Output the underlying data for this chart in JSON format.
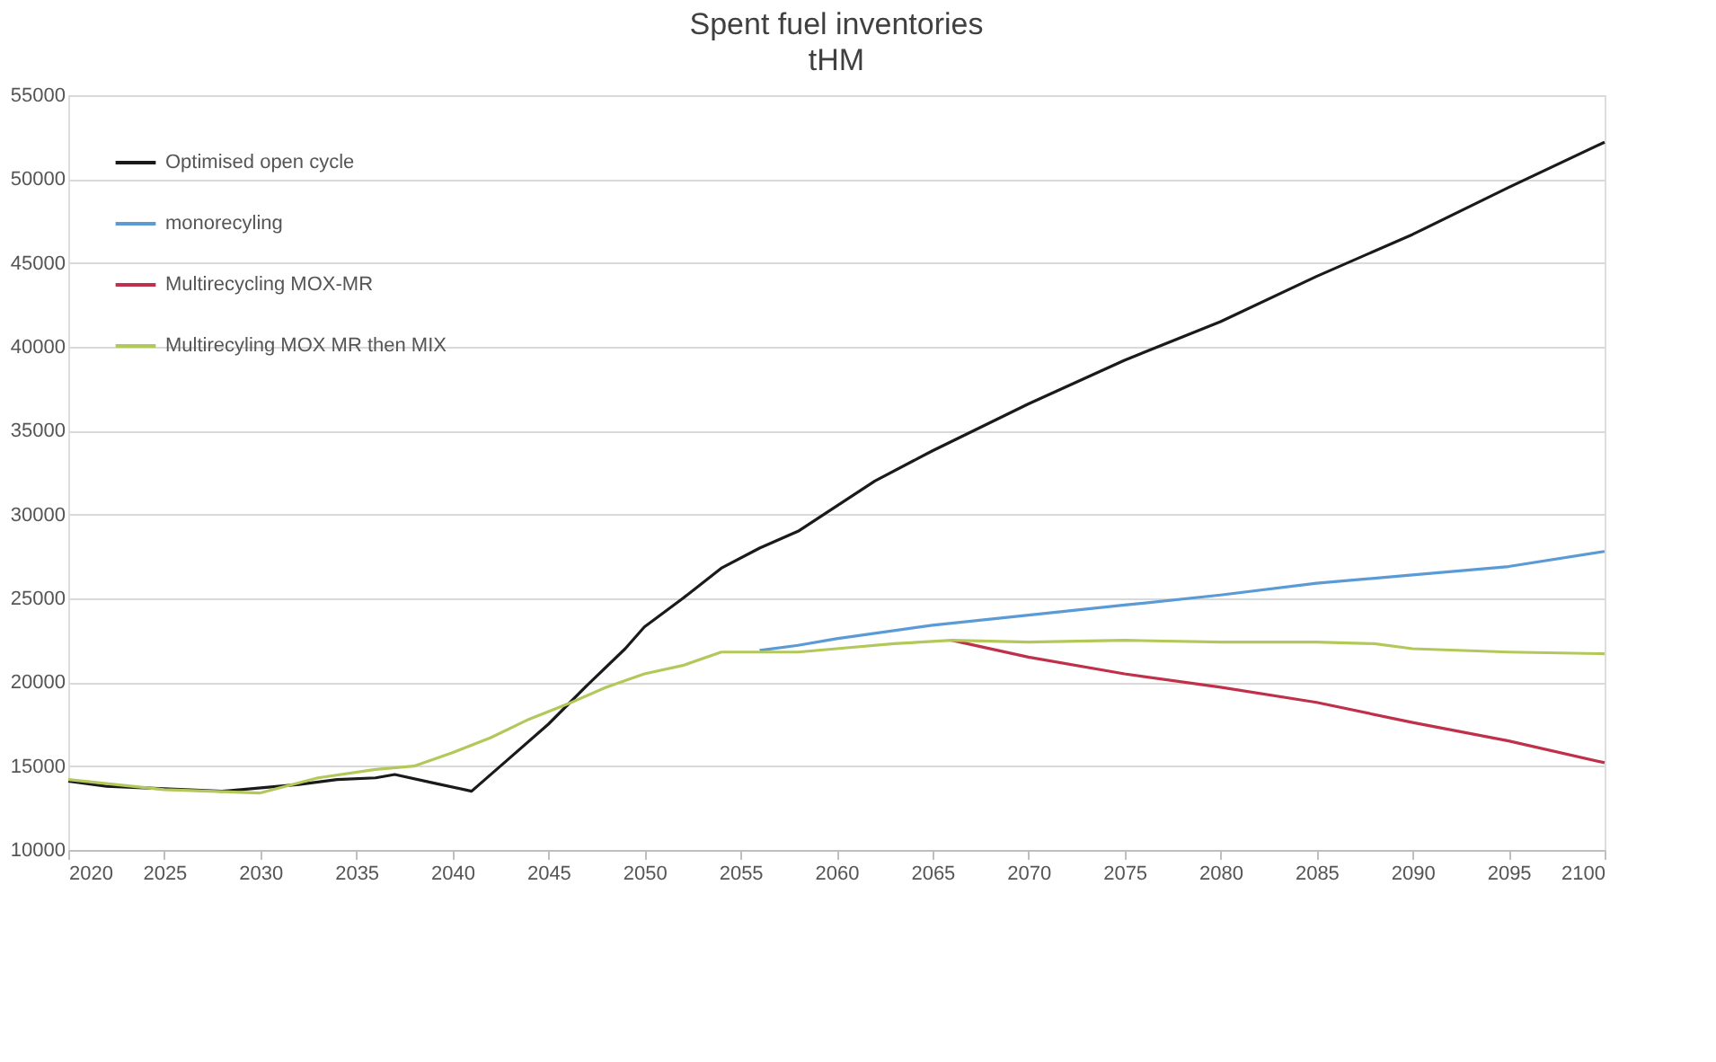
{
  "chart_data": {
    "type": "line",
    "title": "Spent fuel  inventories",
    "subtitle": "tHM",
    "xlim": [
      2020,
      2100
    ],
    "xticks": [
      2020,
      2025,
      2030,
      2035,
      2040,
      2045,
      2050,
      2055,
      2060,
      2065,
      2070,
      2075,
      2080,
      2085,
      2090,
      2095,
      2100
    ],
    "ylim": [
      10000,
      55000
    ],
    "yticks": [
      10000,
      15000,
      20000,
      25000,
      30000,
      35000,
      40000,
      45000,
      50000,
      55000
    ],
    "grid": "y",
    "legend": "top left",
    "marker": "none",
    "line_style": "solid",
    "series": [
      {
        "name": "Optimised open cycle",
        "color": "#1a1a1a",
        "x": [
          2020,
          2022,
          2028,
          2032,
          2034,
          2036,
          2037,
          2039,
          2041,
          2043,
          2045,
          2047,
          2049,
          2050,
          2052,
          2054,
          2056,
          2058,
          2060,
          2062,
          2065,
          2070,
          2075,
          2080,
          2085,
          2090,
          2095,
          2100
        ],
        "values": [
          14100,
          13800,
          13500,
          13900,
          14200,
          14300,
          14500,
          14000,
          13500,
          15500,
          17500,
          19800,
          22000,
          23300,
          25000,
          26800,
          28000,
          29000,
          30500,
          32000,
          33800,
          36600,
          39200,
          41500,
          44200,
          46700,
          49500,
          52200
        ]
      },
      {
        "name": "monorecyling",
        "color": "#5b9bd5",
        "x": [
          2056,
          2058,
          2060,
          2065,
          2070,
          2075,
          2080,
          2085,
          2090,
          2095,
          2100
        ],
        "values": [
          21900,
          22200,
          22600,
          23400,
          24000,
          24600,
          25200,
          25900,
          26400,
          26900,
          27800
        ]
      },
      {
        "name": "Multirecycling MOX-MR",
        "color": "#c0304a",
        "x": [
          2066,
          2070,
          2075,
          2080,
          2085,
          2090,
          2095,
          2100
        ],
        "values": [
          22500,
          21500,
          20500,
          19700,
          18800,
          17600,
          16500,
          15200
        ]
      },
      {
        "name": "Multirecyling MOX MR then MIX",
        "color": "#b3c85a",
        "x": [
          2020,
          2025,
          2030,
          2033,
          2036,
          2038,
          2040,
          2042,
          2044,
          2046,
          2048,
          2050,
          2052,
          2054,
          2056,
          2058,
          2060,
          2063,
          2066,
          2070,
          2075,
          2080,
          2085,
          2088,
          2090,
          2095,
          2100
        ],
        "values": [
          14200,
          13600,
          13400,
          14300,
          14800,
          15000,
          15800,
          16700,
          17800,
          18700,
          19700,
          20500,
          21000,
          21800,
          21800,
          21800,
          22000,
          22300,
          22500,
          22400,
          22500,
          22400,
          22400,
          22300,
          22000,
          21800,
          21700
        ]
      }
    ]
  }
}
